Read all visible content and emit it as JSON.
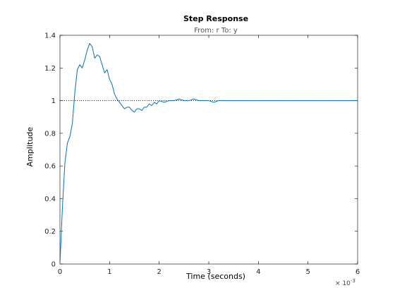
{
  "chart_data": {
    "type": "line",
    "title": "Step Response",
    "subtitle": "From: r  To: y",
    "xlabel": "Time (seconds)",
    "ylabel": "Amplitude",
    "x_scale_exponent_base": "× 10",
    "x_scale_exponent_power": "-3",
    "xlim": [
      0,
      6
    ],
    "ylim": [
      0,
      1.4
    ],
    "xticks": [
      "0",
      "1",
      "2",
      "3",
      "4",
      "5",
      "6"
    ],
    "yticks": [
      "0",
      "0.2",
      "0.4",
      "0.6",
      "0.8",
      "1",
      "1.2",
      "1.4"
    ],
    "grid": false,
    "reference_line": {
      "y": 1,
      "style": "dotted",
      "color": "#000000"
    },
    "series": [
      {
        "color": "#0072bd",
        "x": [
          0,
          0.05,
          0.1,
          0.15,
          0.2,
          0.25,
          0.3,
          0.35,
          0.4,
          0.45,
          0.5,
          0.55,
          0.6,
          0.65,
          0.7,
          0.75,
          0.8,
          0.85,
          0.9,
          0.95,
          1.0,
          1.05,
          1.1,
          1.15,
          1.2,
          1.25,
          1.3,
          1.35,
          1.4,
          1.45,
          1.5,
          1.55,
          1.6,
          1.65,
          1.7,
          1.75,
          1.8,
          1.85,
          1.9,
          1.95,
          2.0,
          2.1,
          2.2,
          2.3,
          2.4,
          2.5,
          2.6,
          2.7,
          2.8,
          2.9,
          3.0,
          3.1,
          3.2,
          3.3,
          3.4,
          3.5,
          3.6,
          3.7,
          3.8,
          3.9,
          4.0,
          4.1,
          4.2,
          4.3,
          4.4,
          4.5,
          4.6,
          4.7,
          4.8,
          4.9,
          5.0,
          5.1,
          5.2,
          5.3,
          5.4,
          5.5,
          5.6,
          5.7,
          5.8,
          5.9,
          6.0
        ],
        "y": [
          0,
          0.35,
          0.62,
          0.74,
          0.78,
          0.86,
          1.05,
          1.19,
          1.22,
          1.2,
          1.25,
          1.31,
          1.35,
          1.33,
          1.26,
          1.28,
          1.27,
          1.22,
          1.17,
          1.19,
          1.13,
          1.1,
          1.04,
          1.01,
          0.99,
          0.97,
          0.95,
          0.96,
          0.96,
          0.94,
          0.93,
          0.95,
          0.95,
          0.94,
          0.96,
          0.96,
          0.98,
          0.97,
          0.99,
          0.98,
          1.0,
          0.99,
          1.0,
          1.0,
          1.01,
          1.0,
          1.0,
          1.01,
          1.0,
          1.0,
          1.0,
          0.99,
          1.0,
          1.0,
          1.0,
          1.0,
          1.0,
          1.0,
          1.0,
          1.0,
          1.0,
          1.0,
          1.0,
          1.0,
          1.0,
          1.0,
          1.0,
          1.0,
          1.0,
          1.0,
          1.0,
          1.0,
          1.0,
          1.0,
          1.0,
          1.0,
          1.0,
          1.0,
          1.0,
          1.0,
          1.0
        ]
      }
    ]
  }
}
